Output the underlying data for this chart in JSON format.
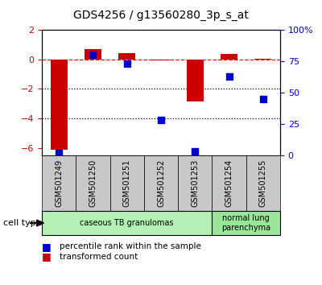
{
  "title": "GDS4256 / g13560280_3p_s_at",
  "samples": [
    "GSM501249",
    "GSM501250",
    "GSM501251",
    "GSM501252",
    "GSM501253",
    "GSM501254",
    "GSM501255"
  ],
  "red_values": [
    -6.1,
    0.72,
    0.42,
    -0.08,
    -2.85,
    0.38,
    0.02
  ],
  "blue_values": [
    2,
    80,
    73,
    28,
    3,
    63,
    45
  ],
  "ylim_left": [
    -6.5,
    2.0
  ],
  "ylim_right": [
    0,
    100
  ],
  "yticks_left": [
    -6,
    -4,
    -2,
    0,
    2
  ],
  "yticks_right": [
    0,
    25,
    50,
    75,
    100
  ],
  "ytick_labels_right": [
    "0",
    "25",
    "50",
    "75",
    "100%"
  ],
  "dotted_lines": [
    -2,
    -4
  ],
  "cell_type_groups": [
    {
      "label": "caseous TB granulomas",
      "start": 0,
      "end": 4,
      "color": "#b3f0b3"
    },
    {
      "label": "normal lung\nparenchyma",
      "start": 5,
      "end": 6,
      "color": "#99e699"
    }
  ],
  "bar_color": "#cc0000",
  "square_color": "#0000cc",
  "bar_width": 0.5,
  "square_size": 35,
  "tick_label_color_left": "#cc0000",
  "tick_label_color_right": "#0000cc",
  "legend_red": "transformed count",
  "legend_blue": "percentile rank within the sample",
  "cell_type_label": "cell type",
  "background_plot": "#ffffff",
  "background_xtick": "#c8c8c8"
}
